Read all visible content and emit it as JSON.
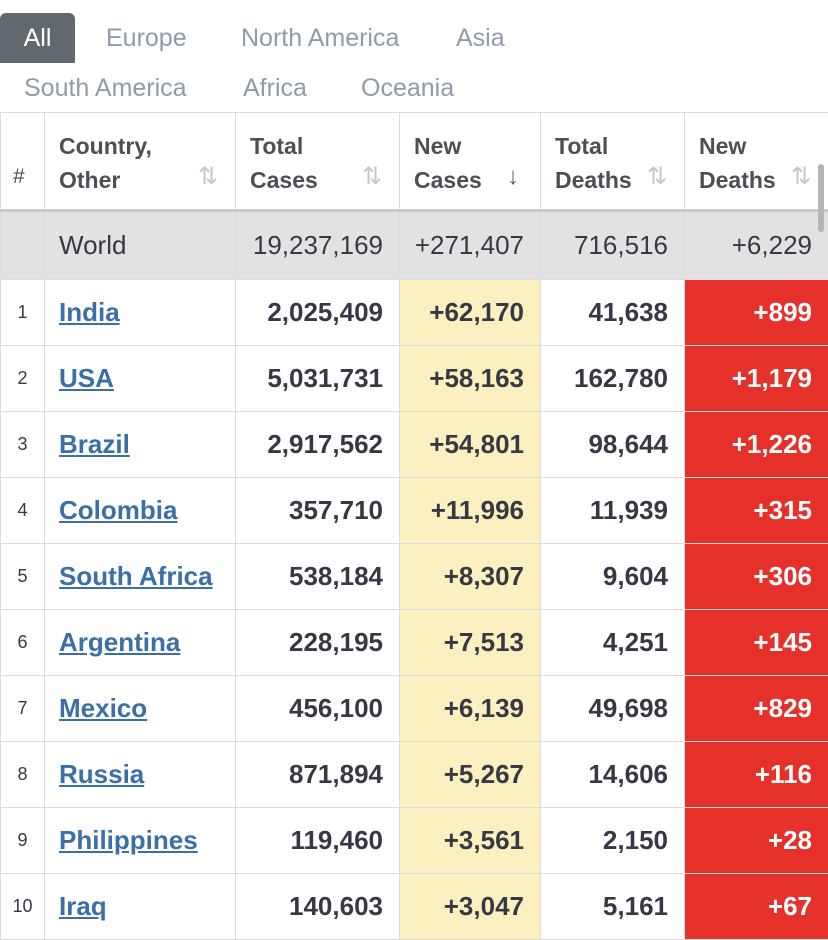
{
  "tabs": [
    {
      "label": "All",
      "active": true
    },
    {
      "label": "Europe"
    },
    {
      "label": "North America"
    },
    {
      "label": "Asia"
    },
    {
      "label": "South America"
    },
    {
      "label": "Africa"
    },
    {
      "label": "Oceania"
    }
  ],
  "table": {
    "headers": {
      "rank": "#",
      "country_1": "Country,",
      "country_2": "Other",
      "total_cases_1": "Total",
      "total_cases_2": "Cases",
      "new_cases_1": "New",
      "new_cases_2": "Cases",
      "total_deaths_1": "Total",
      "total_deaths_2": "Deaths",
      "new_deaths_1": "New",
      "new_deaths_2": "Deaths"
    },
    "world": {
      "country": "World",
      "total_cases": "19,237,169",
      "new_cases": "+271,407",
      "total_deaths": "716,516",
      "new_deaths": "+6,229"
    },
    "rows": [
      {
        "rank": "1",
        "country": "India",
        "total_cases": "2,025,409",
        "new_cases": "+62,170",
        "total_deaths": "41,638",
        "new_deaths": "+899"
      },
      {
        "rank": "2",
        "country": "USA",
        "total_cases": "5,031,731",
        "new_cases": "+58,163",
        "total_deaths": "162,780",
        "new_deaths": "+1,179"
      },
      {
        "rank": "3",
        "country": "Brazil",
        "total_cases": "2,917,562",
        "new_cases": "+54,801",
        "total_deaths": "98,644",
        "new_deaths": "+1,226"
      },
      {
        "rank": "4",
        "country": "Colombia",
        "total_cases": "357,710",
        "new_cases": "+11,996",
        "total_deaths": "11,939",
        "new_deaths": "+315"
      },
      {
        "rank": "5",
        "country": "South Africa",
        "total_cases": "538,184",
        "new_cases": "+8,307",
        "total_deaths": "9,604",
        "new_deaths": "+306"
      },
      {
        "rank": "6",
        "country": "Argentina",
        "total_cases": "228,195",
        "new_cases": "+7,513",
        "total_deaths": "4,251",
        "new_deaths": "+145"
      },
      {
        "rank": "7",
        "country": "Mexico",
        "total_cases": "456,100",
        "new_cases": "+6,139",
        "total_deaths": "49,698",
        "new_deaths": "+829"
      },
      {
        "rank": "8",
        "country": "Russia",
        "total_cases": "871,894",
        "new_cases": "+5,267",
        "total_deaths": "14,606",
        "new_deaths": "+116"
      },
      {
        "rank": "9",
        "country": "Philippines",
        "total_cases": "119,460",
        "new_cases": "+3,561",
        "total_deaths": "2,150",
        "new_deaths": "+28"
      },
      {
        "rank": "10",
        "country": "Iraq",
        "total_cases": "140,603",
        "new_cases": "+3,047",
        "total_deaths": "5,161",
        "new_deaths": "+67"
      }
    ]
  },
  "colors": {
    "active_tab": "#62696e",
    "new_cases_highlight": "#fdf0c0",
    "new_deaths_highlight": "#e6302a",
    "link": "#3a6fa8",
    "world_row": "#e2e2e2"
  },
  "icons": {
    "sort": "sort-arrows-icon",
    "sort_active": "sort-desc-icon"
  }
}
